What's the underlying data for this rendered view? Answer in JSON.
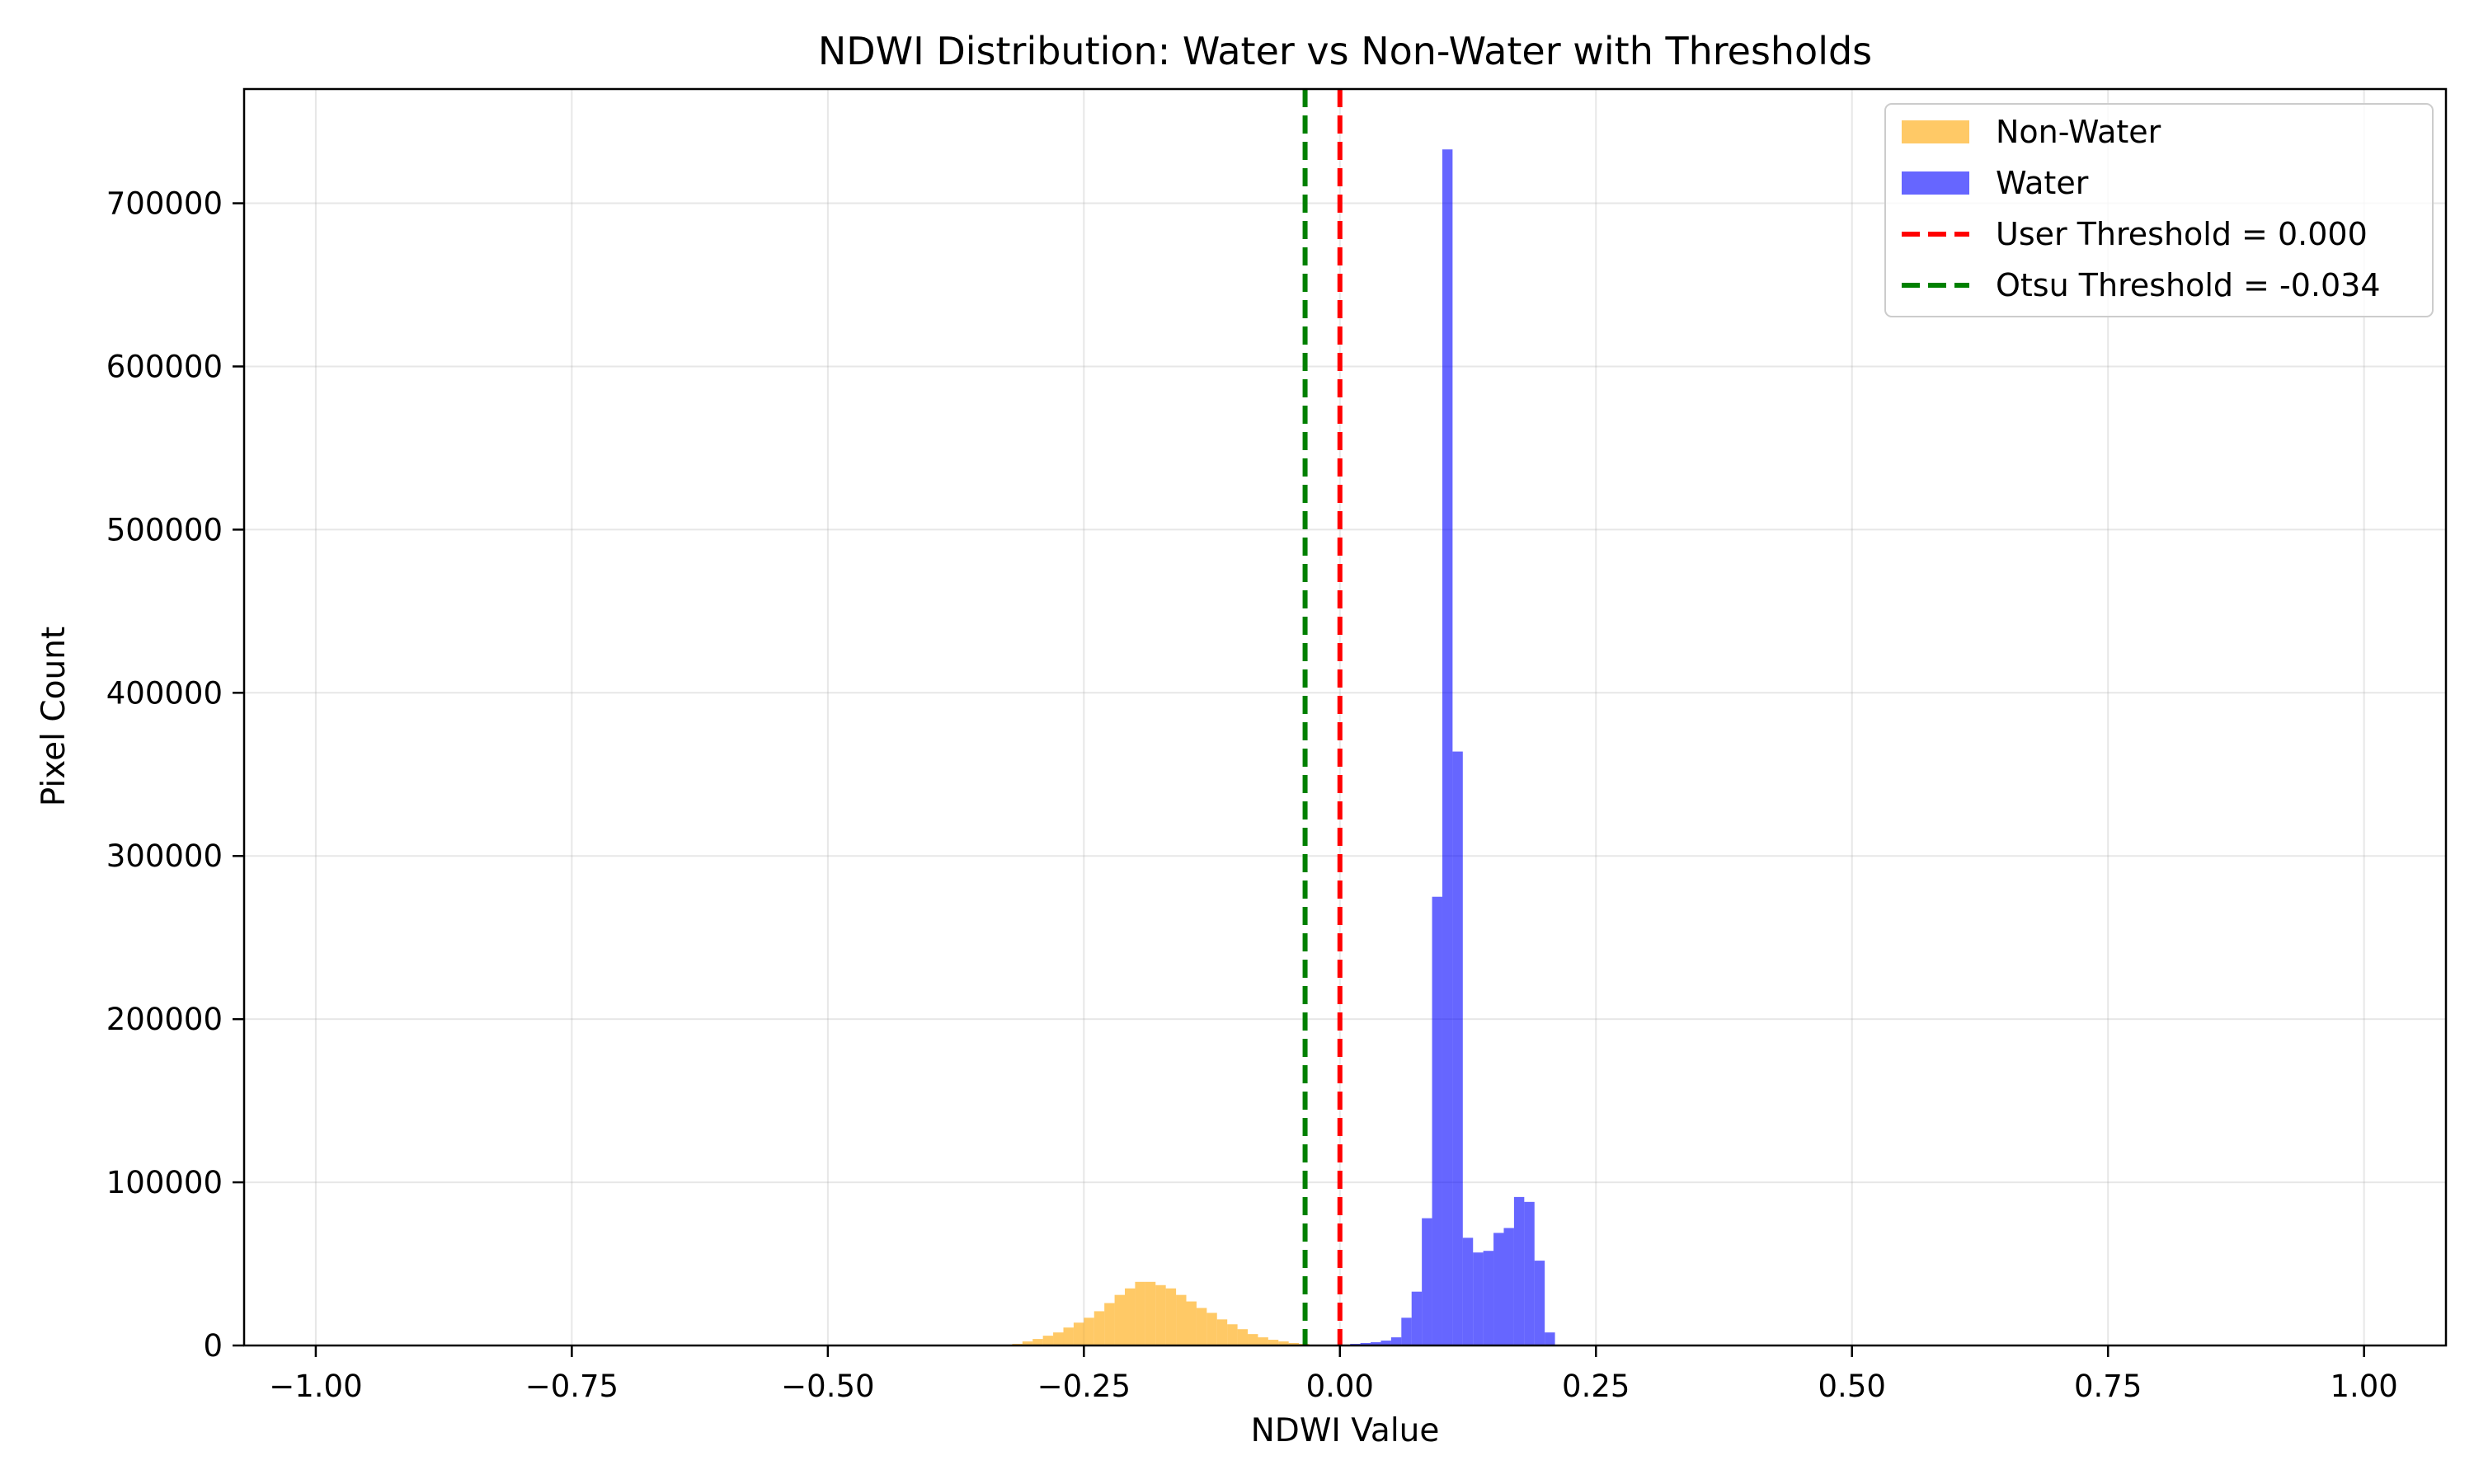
{
  "chart_data": {
    "type": "histogram",
    "title": "NDWI Distribution: Water vs Non-Water with Thresholds",
    "xlabel": "NDWI Value",
    "ylabel": "Pixel Count",
    "xlim": [
      -1.07,
      1.08
    ],
    "ylim": [
      0,
      770000
    ],
    "grid": true,
    "legend_position": "top-right",
    "xticks": [
      "−1.00",
      "−0.75",
      "−0.50",
      "−0.25",
      "0.00",
      "0.25",
      "0.50",
      "0.75",
      "1.00"
    ],
    "xtick_values": [
      -1.0,
      -0.75,
      -0.5,
      -0.25,
      0.0,
      0.25,
      0.5,
      0.75,
      1.0
    ],
    "yticks": [
      "0",
      "100000",
      "200000",
      "300000",
      "400000",
      "500000",
      "600000",
      "700000"
    ],
    "ytick_values": [
      0,
      100000,
      200000,
      300000,
      400000,
      500000,
      600000,
      700000
    ],
    "bin_width": 0.01,
    "series": [
      {
        "name": "Non-Water",
        "color": "#ffa500",
        "opacity": 0.6,
        "bins_start": [
          -0.32,
          -0.31,
          -0.3,
          -0.29,
          -0.28,
          -0.27,
          -0.26,
          -0.25,
          -0.24,
          -0.23,
          -0.22,
          -0.21,
          -0.2,
          -0.19,
          -0.18,
          -0.17,
          -0.16,
          -0.15,
          -0.14,
          -0.13,
          -0.12,
          -0.11,
          -0.1,
          -0.09,
          -0.08,
          -0.07,
          -0.06,
          -0.05,
          -0.04,
          -0.03,
          -0.02,
          -0.01
        ],
        "values": [
          1000,
          2500,
          4000,
          6000,
          8000,
          11000,
          14000,
          17000,
          21000,
          26000,
          31000,
          35000,
          39000,
          39000,
          37000,
          35000,
          31000,
          27000,
          23000,
          20000,
          16000,
          13000,
          10000,
          7000,
          5000,
          3500,
          2500,
          1500,
          1000,
          500,
          300,
          100
        ]
      },
      {
        "name": "Water",
        "color": "#0000ff",
        "opacity": 0.6,
        "bins_start": [
          0.0,
          0.01,
          0.02,
          0.03,
          0.04,
          0.05,
          0.06,
          0.07,
          0.08,
          0.09,
          0.1,
          0.11,
          0.12,
          0.13,
          0.14,
          0.15,
          0.16,
          0.17,
          0.18,
          0.19,
          0.2
        ],
        "values": [
          500,
          1000,
          1500,
          2000,
          3000,
          5000,
          17000,
          33000,
          78000,
          275000,
          733000,
          364000,
          66000,
          57000,
          58000,
          69000,
          72000,
          91000,
          88000,
          52000,
          8000
        ]
      }
    ],
    "thresholds": [
      {
        "name": "User Threshold = 0.000",
        "value": 0.0,
        "color": "#ff0000",
        "style": "dashed"
      },
      {
        "name": "Otsu Threshold = -0.034",
        "value": -0.034,
        "color": "#008000",
        "style": "dashed"
      }
    ]
  }
}
